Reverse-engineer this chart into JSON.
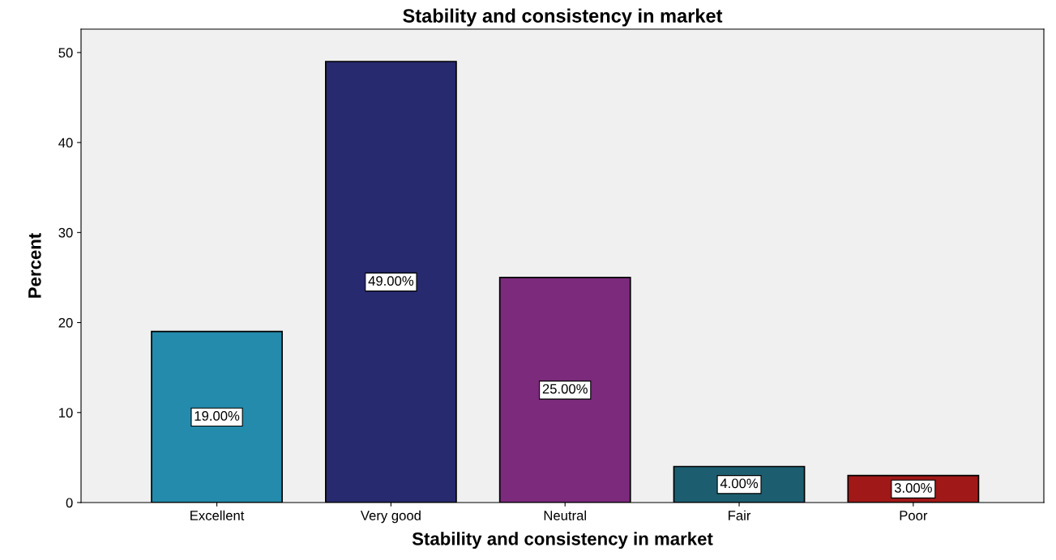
{
  "chart_data": {
    "type": "bar",
    "title": "Stability and consistency in market",
    "xlabel": "Stability and consistency in market",
    "ylabel": "Percent",
    "categories": [
      "Excellent",
      "Very good",
      "Neutral",
      "Fair",
      "Poor"
    ],
    "values": [
      19,
      49,
      25,
      4,
      3
    ],
    "colors": [
      "#248bad",
      "#272a6e",
      "#7b2a7c",
      "#1c5e70",
      "#a01818"
    ],
    "value_labels": [
      "19.00%",
      "49.00%",
      "25.00%",
      "4.00%",
      "3.00%"
    ],
    "ylim": [
      0,
      52.6
    ],
    "yticks": [
      0,
      10,
      20,
      30,
      40,
      50
    ],
    "grid": false,
    "legend": false
  }
}
